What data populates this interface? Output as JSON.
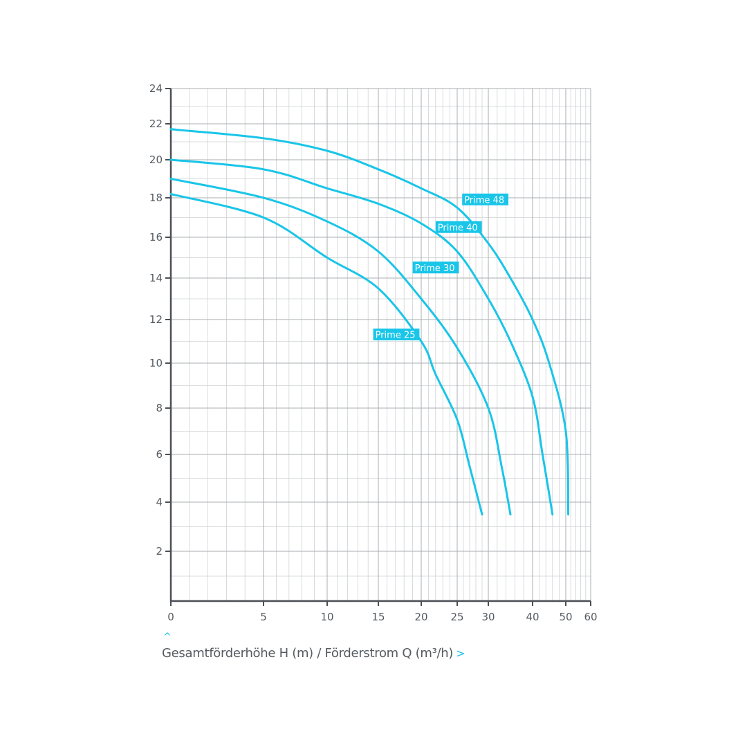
{
  "chart_data": {
    "type": "line",
    "x_scale": "log",
    "y_scale": "log",
    "xlim": [
      0,
      60
    ],
    "ylim": [
      0,
      24
    ],
    "x_ticks": [
      0,
      5,
      10,
      15,
      20,
      25,
      30,
      40,
      50,
      60
    ],
    "y_ticks": [
      2,
      4,
      6,
      8,
      10,
      12,
      14,
      16,
      18,
      20,
      22,
      24
    ],
    "grid": true,
    "xlabel": "Gesamtförderhöhe H (m) / Förderstrom Q (m³/h)",
    "series": [
      {
        "name": "Prime 25",
        "label_at": [
          14.5,
          11.3
        ],
        "points": [
          [
            0,
            18.2
          ],
          [
            5,
            17.0
          ],
          [
            10,
            15.0
          ],
          [
            15,
            13.5
          ],
          [
            20,
            11.0
          ],
          [
            22,
            9.5
          ],
          [
            25,
            7.5
          ],
          [
            27,
            5.5
          ],
          [
            29,
            3.5
          ]
        ]
      },
      {
        "name": "Prime 30",
        "label_at": [
          19.0,
          14.5
        ],
        "points": [
          [
            0,
            19.0
          ],
          [
            5,
            18.0
          ],
          [
            10,
            16.8
          ],
          [
            15,
            15.3
          ],
          [
            20,
            13.0
          ],
          [
            25,
            10.7
          ],
          [
            30,
            8.0
          ],
          [
            33,
            5.5
          ],
          [
            35,
            3.5
          ]
        ]
      },
      {
        "name": "Prime 40",
        "label_at": [
          22.0,
          16.5
        ],
        "points": [
          [
            0,
            20.0
          ],
          [
            5,
            19.5
          ],
          [
            10,
            18.5
          ],
          [
            15,
            17.7
          ],
          [
            20,
            16.7
          ],
          [
            25,
            15.3
          ],
          [
            30,
            13.0
          ],
          [
            35,
            11.0
          ],
          [
            40,
            8.5
          ],
          [
            43,
            6.0
          ],
          [
            46,
            3.5
          ]
        ]
      },
      {
        "name": "Prime 48",
        "label_at": [
          25.8,
          17.9
        ],
        "points": [
          [
            0,
            21.7
          ],
          [
            5,
            21.2
          ],
          [
            10,
            20.5
          ],
          [
            15,
            19.5
          ],
          [
            20,
            18.5
          ],
          [
            25,
            17.5
          ],
          [
            30,
            15.7
          ],
          [
            35,
            14.0
          ],
          [
            40,
            12.0
          ],
          [
            45,
            10.0
          ],
          [
            50,
            7.0
          ],
          [
            51,
            3.5
          ]
        ]
      }
    ],
    "colors": {
      "curve": "#19c5e8",
      "grid": "#cfd2d5",
      "axis": "#4a4f55",
      "text": "#555b61"
    }
  }
}
